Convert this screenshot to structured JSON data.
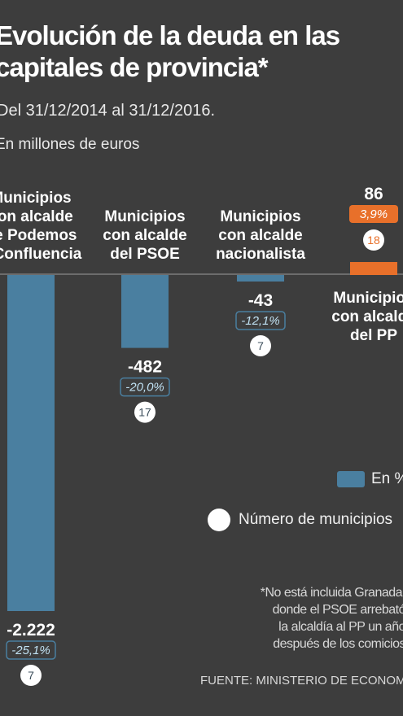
{
  "title": [
    "Evolución de la deuda en las",
    "capitales de provincia*"
  ],
  "subtitle": "Del 31/12/2014 al 31/12/2016.",
  "units": "En millones de euros",
  "legend": {
    "pct": "En %",
    "count": "Número de municipios"
  },
  "footnote": [
    "*No está incluida Granada,",
    "donde el PSOE arrebató",
    "la alcaldía al PP un año",
    "después de los comicios"
  ],
  "source": "FUENTE: MINISTERIO DE ECONOMÍA",
  "colors": {
    "negative_bar": "#4a7fa0",
    "positive_bar": "#e8702a",
    "background": "#3d3d3d"
  },
  "chart_data": {
    "type": "bar",
    "categories": [
      [
        "Municipios",
        "con alcalde",
        "de Podemos",
        "y Confluencia"
      ],
      [
        "Municipios",
        "con alcalde",
        "del PSOE"
      ],
      [
        "Municipios",
        "con alcalde",
        "nacionalista"
      ],
      [
        "Municipios",
        "con alcalde",
        "del PP"
      ]
    ],
    "values": [
      -2222,
      -482,
      -43,
      86
    ],
    "value_labels": [
      "-2.222",
      "-482",
      "-43",
      "86"
    ],
    "percent_labels": [
      "-25,1%",
      "-20,0%",
      "-12,1%",
      "3,9%"
    ],
    "municipality_counts": [
      "7",
      "17",
      "7",
      "18"
    ]
  }
}
